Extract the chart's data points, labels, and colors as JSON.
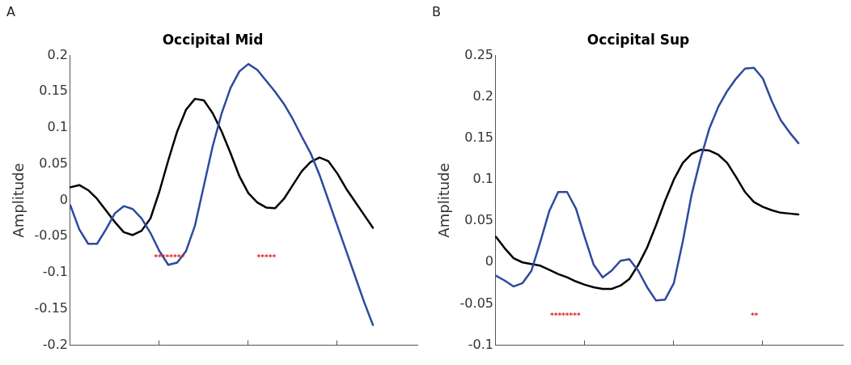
{
  "chart_data": [
    {
      "type": "line",
      "title": "Occipital Mid",
      "ylabel": "Amplitude",
      "annotations": [
        "A",
        "********",
        "*****"
      ],
      "categories": [
        null,
        null,
        null,
        null,
        null,
        null,
        null,
        null,
        null,
        null,
        null,
        null,
        null,
        null,
        null,
        null,
        null,
        null,
        null,
        null,
        null,
        null,
        null,
        null,
        null,
        null,
        null,
        null,
        null,
        null,
        null,
        null,
        null,
        null,
        null,
        null,
        null,
        null,
        null,
        null
      ],
      "ylim": [
        -0.2,
        0.2
      ],
      "yticks": [
        -0.2,
        -0.15,
        -0.1,
        -0.05,
        0,
        0.05,
        0.1,
        0.15,
        0.2
      ],
      "grid": false,
      "series": [
        {
          "color": "#2e4a9e",
          "values": [
            -0.007,
            -0.04,
            -0.06,
            -0.06,
            -0.04,
            -0.018,
            -0.008,
            -0.012,
            -0.025,
            -0.045,
            -0.07,
            -0.089,
            -0.086,
            -0.07,
            -0.035,
            0.02,
            0.075,
            0.12,
            0.155,
            0.178,
            0.188,
            0.18,
            0.165,
            0.15,
            0.133,
            0.112,
            0.088,
            0.065,
            0.035,
            0,
            -0.035,
            -0.07,
            -0.105,
            -0.14,
            -0.172,
            null,
            null,
            null,
            null,
            null
          ]
        },
        {
          "color": "#000000",
          "values": [
            0.018,
            0.021,
            0.014,
            0.002,
            -0.014,
            -0.03,
            -0.044,
            -0.048,
            -0.042,
            -0.025,
            0.012,
            0.055,
            0.095,
            0.125,
            0.14,
            0.138,
            0.12,
            0.095,
            0.065,
            0.033,
            0.01,
            -0.003,
            -0.01,
            -0.011,
            0.002,
            0.021,
            0.04,
            0.053,
            0.059,
            0.054,
            0.037,
            0.016,
            -0.002,
            -0.02,
            -0.038,
            null,
            null,
            null,
            null,
            null
          ]
        }
      ]
    },
    {
      "type": "line",
      "title": "Occipital Sup",
      "ylabel": "Amplitude",
      "annotations": [
        "B",
        "********",
        "**"
      ],
      "categories": [
        null,
        null,
        null,
        null,
        null,
        null,
        null,
        null,
        null,
        null,
        null,
        null,
        null,
        null,
        null,
        null,
        null,
        null,
        null,
        null,
        null,
        null,
        null,
        null,
        null,
        null,
        null,
        null,
        null,
        null,
        null,
        null,
        null,
        null,
        null,
        null,
        null,
        null,
        null,
        null
      ],
      "ylim": [
        -0.1,
        0.25
      ],
      "yticks": [
        -0.1,
        -0.05,
        0,
        0.05,
        0.1,
        0.15,
        0.2,
        0.25
      ],
      "grid": false,
      "series": [
        {
          "color": "#2e4a9e",
          "values": [
            -0.016,
            -0.022,
            -0.029,
            -0.025,
            -0.01,
            0.025,
            0.062,
            0.085,
            0.085,
            0.065,
            0.03,
            -0.003,
            -0.018,
            -0.01,
            0.002,
            0.004,
            -0.01,
            -0.03,
            -0.046,
            -0.045,
            -0.025,
            0.025,
            0.082,
            0.125,
            0.162,
            0.188,
            0.207,
            0.222,
            0.234,
            0.235,
            0.222,
            0.195,
            0.172,
            0.157,
            0.144,
            null,
            null,
            null,
            null,
            null
          ]
        },
        {
          "color": "#000000",
          "values": [
            0.031,
            0.017,
            0.005,
            0,
            -0.002,
            -0.004,
            -0.009,
            -0.014,
            -0.018,
            -0.023,
            -0.027,
            -0.03,
            -0.032,
            -0.032,
            -0.028,
            -0.02,
            -0.003,
            0.018,
            0.045,
            0.074,
            0.1,
            0.12,
            0.131,
            0.136,
            0.135,
            0.13,
            0.12,
            0.103,
            0.085,
            0.073,
            0.067,
            0.063,
            0.06,
            0.059,
            0.058,
            null,
            null,
            null,
            null,
            null
          ]
        }
      ]
    }
  ]
}
